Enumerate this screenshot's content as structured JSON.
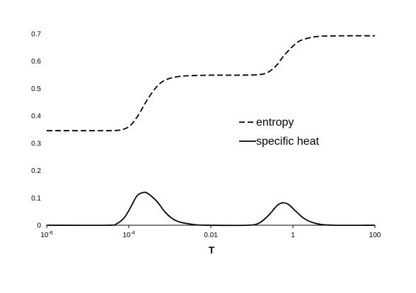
{
  "chart_data": {
    "type": "line",
    "title": "",
    "xlabel": "T",
    "ylabel": "",
    "x_scale": "log",
    "xlim": [
      1e-06,
      100
    ],
    "ylim": [
      0,
      0.7
    ],
    "x_ticks": [
      {
        "value": 1e-06,
        "base": "10",
        "exp": "-6"
      },
      {
        "value": 0.0001,
        "base": "10",
        "exp": "-4"
      },
      {
        "value": 0.01,
        "base": "0.01",
        "exp": ""
      },
      {
        "value": 1,
        "base": "1",
        "exp": ""
      },
      {
        "value": 100,
        "base": "100",
        "exp": ""
      }
    ],
    "y_ticks": [
      "0",
      "0.1",
      "0.2",
      "0.3",
      "0.4",
      "0.5",
      "0.6",
      "0.7"
    ],
    "grid": false,
    "legend_position": "center-right",
    "series": [
      {
        "name": "entropy",
        "style": "dashed",
        "color": "#000000",
        "points": [
          [
            1e-06,
            0.346
          ],
          [
            1e-05,
            0.346
          ],
          [
            3e-05,
            0.346
          ],
          [
            6e-05,
            0.348
          ],
          [
            0.0001,
            0.36
          ],
          [
            0.00015,
            0.39
          ],
          [
            0.0002,
            0.42
          ],
          [
            0.0003,
            0.465
          ],
          [
            0.0005,
            0.51
          ],
          [
            0.0008,
            0.532
          ],
          [
            0.0015,
            0.543
          ],
          [
            0.003,
            0.547
          ],
          [
            0.01,
            0.549
          ],
          [
            0.05,
            0.549
          ],
          [
            0.15,
            0.551
          ],
          [
            0.25,
            0.56
          ],
          [
            0.4,
            0.585
          ],
          [
            0.6,
            0.62
          ],
          [
            1,
            0.655
          ],
          [
            1.5,
            0.675
          ],
          [
            3,
            0.688
          ],
          [
            6,
            0.692
          ],
          [
            20,
            0.693
          ],
          [
            100,
            0.693
          ]
        ]
      },
      {
        "name": "specific heat",
        "style": "solid",
        "color": "#000000",
        "points": [
          [
            1e-06,
            0
          ],
          [
            3e-05,
            0
          ],
          [
            5e-05,
            0.005
          ],
          [
            8e-05,
            0.03
          ],
          [
            0.00012,
            0.075
          ],
          [
            0.00016,
            0.108
          ],
          [
            0.00023,
            0.12
          ],
          [
            0.0003,
            0.115
          ],
          [
            0.0005,
            0.085
          ],
          [
            0.0008,
            0.045
          ],
          [
            0.0015,
            0.015
          ],
          [
            0.004,
            0.002
          ],
          [
            0.01,
            0
          ],
          [
            0.08,
            0
          ],
          [
            0.15,
            0.008
          ],
          [
            0.25,
            0.035
          ],
          [
            0.4,
            0.07
          ],
          [
            0.5,
            0.08
          ],
          [
            0.6,
            0.082
          ],
          [
            0.8,
            0.075
          ],
          [
            1.2,
            0.05
          ],
          [
            2,
            0.022
          ],
          [
            4,
            0.005
          ],
          [
            10,
            0
          ],
          [
            100,
            0
          ]
        ]
      }
    ]
  }
}
